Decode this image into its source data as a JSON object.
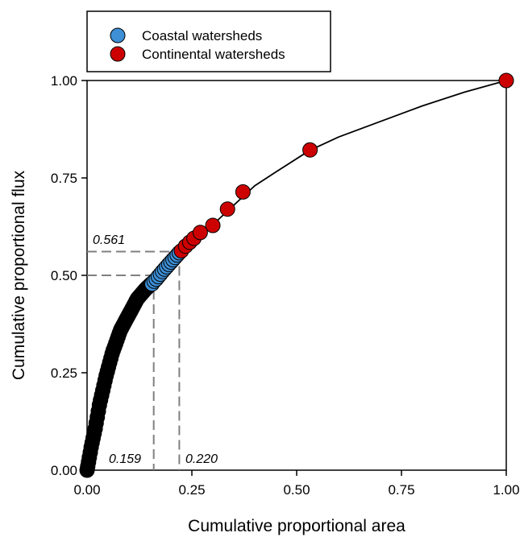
{
  "chart_data": {
    "type": "scatter",
    "xlabel": "Cumulative proportional area",
    "ylabel": "Cumulative proportional flux",
    "xlim": [
      0,
      1
    ],
    "ylim": [
      0,
      1
    ],
    "x_ticks": [
      "0.00",
      "0.25",
      "0.50",
      "0.75",
      "1.00"
    ],
    "y_ticks": [
      "0.00",
      "0.25",
      "0.50",
      "0.75",
      "1.00"
    ],
    "grid": false,
    "legend_position": "top-left",
    "legend": [
      {
        "label": "Coastal watersheds",
        "color": "#3d8fd6"
      },
      {
        "label": "Continental watersheds",
        "color": "#cc0000"
      }
    ],
    "background_series_color": "#000000",
    "background_curve": [
      [
        0.0,
        0.0
      ],
      [
        0.005,
        0.03
      ],
      [
        0.01,
        0.06
      ],
      [
        0.02,
        0.11
      ],
      [
        0.03,
        0.17
      ],
      [
        0.045,
        0.24
      ],
      [
        0.06,
        0.3
      ],
      [
        0.08,
        0.36
      ],
      [
        0.1,
        0.4
      ],
      [
        0.12,
        0.44
      ],
      [
        0.14,
        0.465
      ],
      [
        0.155,
        0.48
      ]
    ],
    "fit_curve": [
      [
        0.0,
        0.0
      ],
      [
        0.02,
        0.11
      ],
      [
        0.05,
        0.26
      ],
      [
        0.08,
        0.36
      ],
      [
        0.11,
        0.42
      ],
      [
        0.15,
        0.475
      ],
      [
        0.19,
        0.525
      ],
      [
        0.22,
        0.56
      ],
      [
        0.25,
        0.585
      ],
      [
        0.3,
        0.63
      ],
      [
        0.35,
        0.68
      ],
      [
        0.4,
        0.73
      ],
      [
        0.45,
        0.765
      ],
      [
        0.53,
        0.82
      ],
      [
        0.6,
        0.855
      ],
      [
        0.7,
        0.895
      ],
      [
        0.8,
        0.935
      ],
      [
        0.9,
        0.97
      ],
      [
        1.0,
        1.0
      ]
    ],
    "series": [
      {
        "name": "Coastal watersheds",
        "color": "#3d8fd6",
        "points": [
          [
            0.155,
            0.478
          ],
          [
            0.16,
            0.485
          ],
          [
            0.165,
            0.49
          ],
          [
            0.17,
            0.497
          ],
          [
            0.175,
            0.503
          ],
          [
            0.18,
            0.51
          ],
          [
            0.185,
            0.516
          ],
          [
            0.19,
            0.522
          ],
          [
            0.195,
            0.528
          ],
          [
            0.2,
            0.534
          ],
          [
            0.205,
            0.54
          ],
          [
            0.21,
            0.546
          ],
          [
            0.215,
            0.552
          ],
          [
            0.22,
            0.558
          ]
        ]
      },
      {
        "name": "Continental watersheds",
        "color": "#cc0000",
        "points": [
          [
            0.225,
            0.563
          ],
          [
            0.235,
            0.575
          ],
          [
            0.245,
            0.585
          ],
          [
            0.255,
            0.595
          ],
          [
            0.27,
            0.61
          ],
          [
            0.3,
            0.628
          ],
          [
            0.335,
            0.67
          ],
          [
            0.372,
            0.714
          ],
          [
            0.532,
            0.822
          ],
          [
            1.0,
            1.0
          ]
        ]
      }
    ],
    "annotations": [
      {
        "label": "0.561",
        "x": 0.22,
        "y": 0.561
      },
      {
        "label": "0.159",
        "x": 0.159,
        "y": 0.5
      },
      {
        "label": "0.220",
        "x": 0.22,
        "y": 0.561
      }
    ]
  }
}
